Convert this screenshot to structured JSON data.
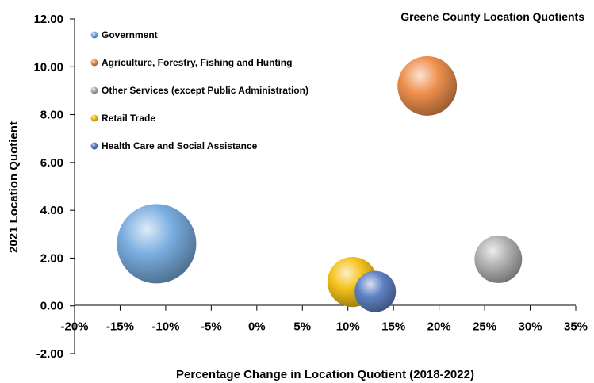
{
  "chart_data": {
    "type": "bubble",
    "title": "Greene County Location Quotients",
    "xlabel": "Percentage Change in Location Quotient (2018-2022)",
    "ylabel": "2021 Location Quotient",
    "xlim": [
      -0.2,
      0.35
    ],
    "ylim": [
      -2.0,
      12.0
    ],
    "x_ticks": [
      "-20%",
      "-15%",
      "-10%",
      "-5%",
      "0%",
      "5%",
      "10%",
      "15%",
      "20%",
      "25%",
      "30%",
      "35%"
    ],
    "y_ticks": [
      "12.00",
      "10.00",
      "8.00",
      "6.00",
      "4.00",
      "2.00",
      "0.00",
      "-2.00"
    ],
    "legend_position": "top-left",
    "series": [
      {
        "name": "Government",
        "color": "#7aaee0",
        "x": -0.11,
        "y": 2.6,
        "size": 1.0
      },
      {
        "name": "Agriculture, Forestry, Fishing and Hunting",
        "color": "#ee8f4d",
        "x": 0.187,
        "y": 9.2,
        "size": 0.56
      },
      {
        "name": "Other Services (except Public Administration)",
        "color": "#b3b3b3",
        "x": 0.265,
        "y": 1.95,
        "size": 0.36
      },
      {
        "name": "Retail Trade",
        "color": "#f4c21c",
        "x": 0.105,
        "y": 1.0,
        "size": 0.4
      },
      {
        "name": "Health Care and Social Assistance",
        "color": "#5f82c5",
        "x": 0.13,
        "y": 0.6,
        "size": 0.27
      }
    ]
  }
}
